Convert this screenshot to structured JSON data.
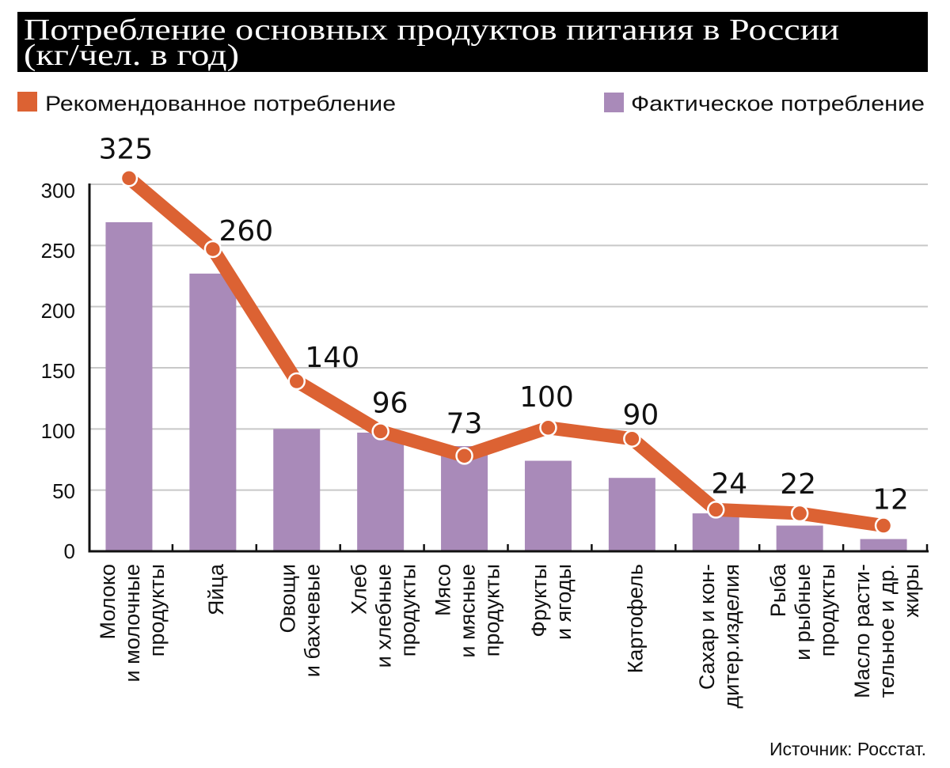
{
  "colors": {
    "title_bg": "#000000",
    "recommended": "#dc6233",
    "actual": "#a98ab9",
    "grid": "#c8c8c8",
    "axis": "#111111"
  },
  "title": {
    "line1": "Потребление основных продуктов питания в России",
    "line2": "(кг/чел. в год)"
  },
  "legend": {
    "recommended_label": "Рекомендованное потребление",
    "actual_label": "Фактическое потребление"
  },
  "source": "Источник: Росстат.",
  "chart_data": {
    "type": "bar",
    "title": "Потребление основных продуктов питания в России (кг/чел. в год)",
    "xlabel": "",
    "ylabel": "",
    "ylim": [
      0,
      300
    ],
    "yticks": [
      "0",
      "50",
      "100",
      "150",
      "200",
      "250",
      "300"
    ],
    "ytick_values": [
      0,
      50,
      100,
      150,
      200,
      250,
      300
    ],
    "grid": true,
    "legend_position": "top",
    "categories": [
      [
        "Молоко",
        "и молочные",
        "продукты"
      ],
      [
        "Яйца"
      ],
      [
        "Овощи",
        "и бахчевые"
      ],
      [
        "Хлеб",
        "и хлебные",
        "продукты"
      ],
      [
        "Мясо",
        "и мясные",
        "продукты"
      ],
      [
        "Фрукты",
        "и ягоды"
      ],
      [
        "Картофель"
      ],
      [
        "Сахар и кон-",
        "дитер.изделия"
      ],
      [
        "Рыба",
        "и рыбные",
        "продукты"
      ],
      [
        "Масло расти-",
        "тельное и др.",
        "жиры"
      ]
    ],
    "series": [
      {
        "name": "Рекомендованное потребление",
        "type": "line",
        "data_labels": [
          "325",
          "260",
          "140",
          "96",
          "73",
          "100",
          "90",
          "24",
          "22",
          "12"
        ],
        "values": [
          325,
          260,
          140,
          96,
          73,
          100,
          90,
          24,
          22,
          12
        ],
        "plotted_values": [
          305,
          247,
          139,
          98,
          78,
          101,
          92,
          34,
          31,
          21
        ]
      },
      {
        "name": "Фактическое потребление",
        "type": "bar",
        "values": [
          269,
          227,
          100,
          97,
          86,
          74,
          60,
          31,
          21,
          10
        ]
      }
    ]
  }
}
